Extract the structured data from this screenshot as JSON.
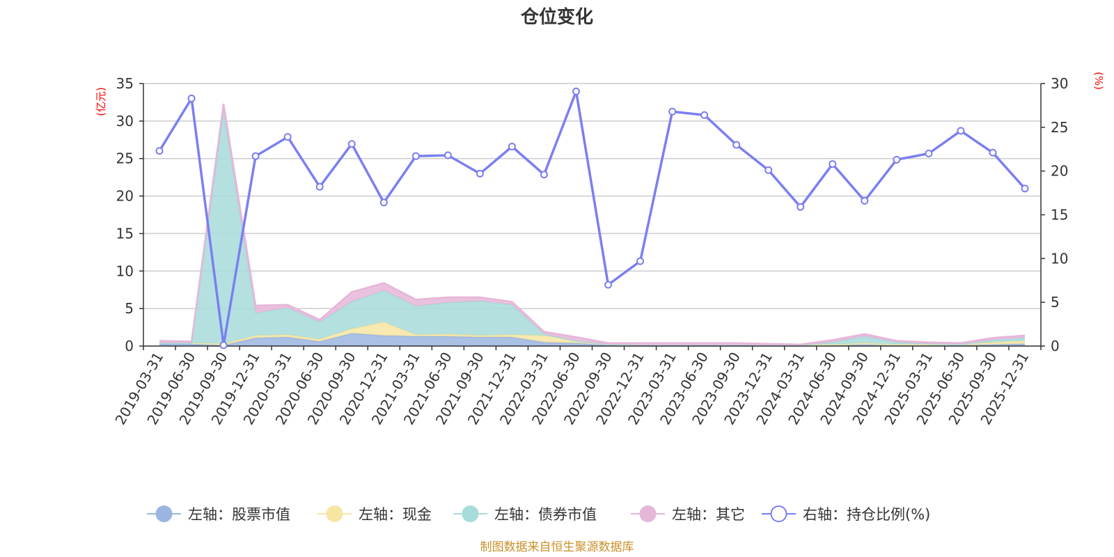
{
  "chart_data": {
    "type": "area",
    "title": "仓位变化",
    "left_unit": "(亿元)",
    "right_unit": "(%)",
    "source": "制图数据来自恒生聚源数据库",
    "categories": [
      "2019-03-31",
      "2019-06-30",
      "2019-09-30",
      "2019-12-31",
      "2020-03-31",
      "2020-06-30",
      "2020-09-30",
      "2020-12-31",
      "2021-03-31",
      "2021-06-30",
      "2021-09-30",
      "2021-12-31",
      "2022-03-31",
      "2022-06-30",
      "2022-09-30",
      "2022-12-31",
      "2023-03-31",
      "2023-06-30",
      "2023-09-30",
      "2023-12-31",
      "2024-03-31",
      "2024-06-30",
      "2024-09-30",
      "2024-12-31",
      "2025-03-31",
      "2025-06-30",
      "2025-09-30",
      "2025-12-31"
    ],
    "left_axis": {
      "min": 0,
      "max": 35,
      "ticks": [
        "0",
        "5",
        "10",
        "15",
        "20",
        "25",
        "30",
        "35"
      ]
    },
    "right_axis": {
      "min": 0,
      "max": 30,
      "ticks": [
        "0",
        "5",
        "10",
        "15",
        "20",
        "25",
        "30"
      ]
    },
    "series": [
      {
        "name": "左轴：股票市值",
        "axis": "left",
        "kind": "stacked-area",
        "color": "#9bb5e0",
        "values": [
          0.3,
          0.3,
          0.1,
          1.1,
          1.2,
          0.6,
          1.7,
          1.4,
          1.3,
          1.3,
          1.2,
          1.2,
          0.5,
          0.4,
          0.1,
          0.05,
          0.05,
          0.05,
          0.05,
          0.05,
          0.05,
          0.1,
          0.2,
          0.1,
          0.1,
          0.1,
          0.2,
          0.3
        ]
      },
      {
        "name": "左轴：现金",
        "axis": "left",
        "kind": "stacked-area",
        "color": "#f7e5a2",
        "values": [
          0.1,
          0.1,
          0.2,
          0.3,
          0.3,
          0.3,
          0.6,
          1.8,
          0.2,
          0.3,
          0.2,
          0.3,
          0.9,
          0.3,
          0.1,
          0.05,
          0.05,
          0.05,
          0.05,
          0.05,
          0.05,
          0.1,
          0.2,
          0.1,
          0.1,
          0.1,
          0.3,
          0.4
        ]
      },
      {
        "name": "左轴：债券市值",
        "axis": "left",
        "kind": "stacked-area",
        "color": "#a7dcda",
        "values": [
          0.0,
          0.0,
          31.0,
          3.0,
          3.6,
          2.3,
          3.6,
          4.2,
          3.8,
          4.2,
          4.6,
          4.0,
          0.2,
          0.0,
          0.0,
          0.0,
          0.0,
          0.0,
          0.0,
          0.0,
          0.0,
          0.3,
          0.9,
          0.3,
          0.1,
          0.0,
          0.3,
          0.4
        ]
      },
      {
        "name": "左轴：其它",
        "axis": "left",
        "kind": "stacked-area",
        "color": "#e6b6d8",
        "values": [
          0.3,
          0.2,
          1.0,
          1.0,
          0.4,
          0.3,
          1.3,
          1.0,
          0.9,
          0.7,
          0.5,
          0.4,
          0.3,
          0.5,
          0.2,
          0.3,
          0.3,
          0.3,
          0.3,
          0.2,
          0.1,
          0.3,
          0.3,
          0.2,
          0.2,
          0.2,
          0.3,
          0.3
        ]
      },
      {
        "name": "右轴：持仓比例(%)",
        "axis": "right",
        "kind": "line",
        "color": "#7b7ff0",
        "values": [
          22.3,
          28.3,
          0.1,
          21.7,
          23.9,
          18.2,
          23.1,
          16.4,
          21.7,
          21.8,
          19.7,
          22.8,
          19.6,
          29.1,
          7.0,
          9.7,
          26.8,
          26.4,
          23.0,
          20.1,
          15.9,
          20.8,
          16.6,
          21.3,
          22.0,
          24.6,
          22.1,
          18.0
        ]
      }
    ],
    "grid": true,
    "legend_position": "bottom"
  }
}
